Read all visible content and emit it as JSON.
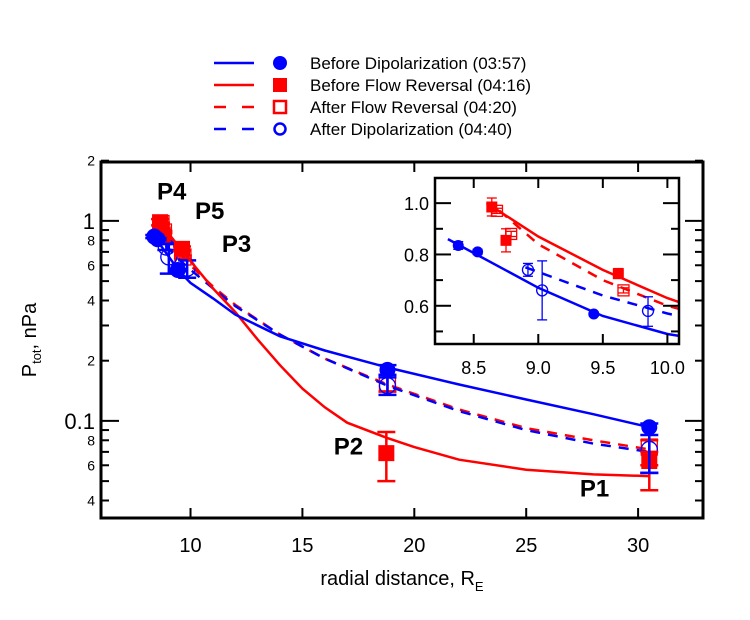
{
  "chart_data": {
    "type": "scatter",
    "title": "",
    "xlabel": "radial distance, R",
    "xlabel_sub": "E",
    "ylabel": "P",
    "ylabel_sub": "tot",
    "ylabel_suffix": ", nPa",
    "xlim": [
      6.0,
      32.9
    ],
    "ylim": [
      0.0327,
      1.97
    ],
    "yscale": "log",
    "xticks": [
      10,
      15,
      20,
      25,
      30
    ],
    "xtick_labels": [
      "10",
      "15",
      "20",
      "25",
      "30"
    ],
    "yticks_major": [
      0.1,
      1
    ],
    "ytick_labels": [
      {
        "value": 2,
        "label": "2",
        "size": "small"
      },
      {
        "value": 1,
        "label": "1",
        "size": "large"
      },
      {
        "value": 0.8,
        "label": "8",
        "size": "small"
      },
      {
        "value": 0.6,
        "label": "6",
        "size": "small"
      },
      {
        "value": 0.4,
        "label": "4",
        "size": "small"
      },
      {
        "value": 0.2,
        "label": "2",
        "size": "small"
      },
      {
        "value": 0.1,
        "label": "0.1",
        "size": "large"
      },
      {
        "value": 0.08,
        "label": "8",
        "size": "small"
      },
      {
        "value": 0.06,
        "label": "6",
        "size": "small"
      },
      {
        "value": 0.04,
        "label": "4",
        "size": "small"
      }
    ],
    "yticks_minor": [
      2,
      0.9,
      0.8,
      0.7,
      0.6,
      0.5,
      0.4,
      0.3,
      0.2,
      0.09,
      0.08,
      0.07,
      0.06,
      0.05,
      0.04
    ],
    "grid": false,
    "legend": {
      "placement": "top-center",
      "entries": [
        {
          "label": "Before Dipolarization (03:57)",
          "color": "#0000ff",
          "line": "solid",
          "marker": "filled-circle"
        },
        {
          "label": "Before Flow Reversal (04:16)",
          "color": "#ff0000",
          "line": "solid",
          "marker": "filled-square"
        },
        {
          "label": "After Flow Reversal (04:20)",
          "color": "#ff0000",
          "line": "dashed",
          "marker": "open-square"
        },
        {
          "label": "After Dipolarization (04:40)",
          "color": "#0000ff",
          "line": "dashed",
          "marker": "open-circle"
        }
      ]
    },
    "series": [
      {
        "name": "Before Dipolarization (03:57)",
        "color": "#0000ff",
        "line": "solid",
        "marker": "filled-circle",
        "points": [
          {
            "x": 8.38,
            "y": 0.835,
            "err": [
              0.82,
              0.85
            ]
          },
          {
            "x": 8.53,
            "y": 0.81,
            "err": [
              0.8,
              0.82
            ]
          },
          {
            "x": 9.43,
            "y": 0.568,
            "err": [
              0.56,
              0.575
            ]
          },
          {
            "x": 18.8,
            "y": 0.18,
            "err": [
              0.17,
              0.19
            ]
          },
          {
            "x": 30.5,
            "y": 0.093,
            "err": [
              0.055,
              0.097
            ]
          }
        ],
        "fit": [
          [
            8.3,
            0.86
          ],
          [
            9.0,
            0.67
          ],
          [
            9.5,
            0.56
          ],
          [
            10.0,
            0.49
          ],
          [
            11.0,
            0.41
          ],
          [
            12.0,
            0.34
          ],
          [
            14.0,
            0.265
          ],
          [
            16.0,
            0.225
          ],
          [
            18.8,
            0.185
          ],
          [
            22.0,
            0.152
          ],
          [
            25.0,
            0.128
          ],
          [
            28.0,
            0.108
          ],
          [
            30.5,
            0.093
          ]
        ]
      },
      {
        "name": "Before Flow Reversal (04:16)",
        "color": "#ff0000",
        "line": "solid",
        "marker": "filled-square",
        "points": [
          {
            "x": 8.64,
            "y": 0.985,
            "err": [
              0.95,
              1.02
            ]
          },
          {
            "x": 8.75,
            "y": 0.855,
            "err": [
              0.81,
              0.9
            ]
          },
          {
            "x": 9.62,
            "y": 0.725,
            "err": [
              0.71,
              0.745
            ]
          },
          {
            "x": 18.75,
            "y": 0.069,
            "err": [
              0.05,
              0.088
            ]
          },
          {
            "x": 30.5,
            "y": 0.063,
            "err": [
              0.045,
              0.07
            ]
          }
        ],
        "fit": [
          [
            8.6,
            1.0
          ],
          [
            9.0,
            0.87
          ],
          [
            9.5,
            0.74
          ],
          [
            10.0,
            0.63
          ],
          [
            11.0,
            0.46
          ],
          [
            12.0,
            0.35
          ],
          [
            13.0,
            0.255
          ],
          [
            14.0,
            0.19
          ],
          [
            15.0,
            0.145
          ],
          [
            16.0,
            0.117
          ],
          [
            17.0,
            0.098
          ],
          [
            18.8,
            0.082
          ],
          [
            20.0,
            0.074
          ],
          [
            22.0,
            0.064
          ],
          [
            25.0,
            0.057
          ],
          [
            28.0,
            0.054
          ],
          [
            30.5,
            0.053
          ]
        ]
      },
      {
        "name": "After Flow Reversal (04:20)",
        "color": "#ff0000",
        "line": "dashed",
        "marker": "open-square",
        "points": [
          {
            "x": 8.68,
            "y": 0.97,
            "err": [
              0.96,
              0.98
            ]
          },
          {
            "x": 8.79,
            "y": 0.88,
            "err": [
              0.87,
              0.89
            ]
          },
          {
            "x": 9.66,
            "y": 0.66,
            "err": [
              0.65,
              0.67
            ]
          },
          {
            "x": 18.8,
            "y": 0.155,
            "err": [
              0.14,
              0.17
            ]
          },
          {
            "x": 30.5,
            "y": 0.074,
            "err": [
              0.06,
              0.08
            ]
          }
        ],
        "fit": [
          [
            8.7,
            0.97
          ],
          [
            9.0,
            0.84
          ],
          [
            9.5,
            0.7
          ],
          [
            10.0,
            0.6
          ],
          [
            11.0,
            0.47
          ],
          [
            12.0,
            0.38
          ],
          [
            14.0,
            0.27
          ],
          [
            16.0,
            0.205
          ],
          [
            18.8,
            0.152
          ],
          [
            22.0,
            0.114
          ],
          [
            25.0,
            0.092
          ],
          [
            28.0,
            0.08
          ],
          [
            30.5,
            0.072
          ]
        ]
      },
      {
        "name": "After Dipolarization (04:40)",
        "color": "#0000ff",
        "line": "dashed",
        "marker": "open-circle",
        "points": [
          {
            "x": 8.92,
            "y": 0.74,
            "err": [
              0.715,
              0.765
            ]
          },
          {
            "x": 9.03,
            "y": 0.66,
            "err": [
              0.545,
              0.775
            ]
          },
          {
            "x": 9.85,
            "y": 0.58,
            "err": [
              0.52,
              0.635
            ]
          },
          {
            "x": 18.8,
            "y": 0.15,
            "err": [
              0.135,
              0.165
            ]
          },
          {
            "x": 30.5,
            "y": 0.072,
            "err": [
              0.055,
              0.085
            ]
          }
        ],
        "fit": [
          [
            8.9,
            0.75
          ],
          [
            9.5,
            0.64
          ],
          [
            10.0,
            0.57
          ],
          [
            11.0,
            0.46
          ],
          [
            12.0,
            0.375
          ],
          [
            14.0,
            0.27
          ],
          [
            16.0,
            0.205
          ],
          [
            18.8,
            0.15
          ],
          [
            22.0,
            0.112
          ],
          [
            25.0,
            0.09
          ],
          [
            28.0,
            0.077
          ],
          [
            30.5,
            0.07
          ]
        ]
      }
    ],
    "annotations": [
      {
        "text": "P4",
        "x": 8.5,
        "y": 1.28
      },
      {
        "text": "P5",
        "x": 10.2,
        "y": 1.02
      },
      {
        "text": "P3",
        "x": 11.4,
        "y": 0.7
      },
      {
        "text": "P2",
        "x": 16.4,
        "y": 0.068
      },
      {
        "text": "P1",
        "x": 27.4,
        "y": 0.042
      }
    ],
    "inset": {
      "type": "scatter",
      "yscale": "linear",
      "xlim": [
        8.2,
        10.09
      ],
      "ylim": [
        0.451,
        1.098
      ],
      "xticks": [
        8.5,
        9.0,
        9.5,
        10.0
      ],
      "xtick_labels": [
        "8.5",
        "9.0",
        "9.5",
        "10.0"
      ],
      "yticks": [
        0.6,
        0.8,
        1.0
      ],
      "ytick_labels": [
        "0.6",
        "0.8",
        "1.0"
      ],
      "yticks_minor": [
        0.5,
        0.7,
        0.9
      ],
      "grid": false
    }
  }
}
